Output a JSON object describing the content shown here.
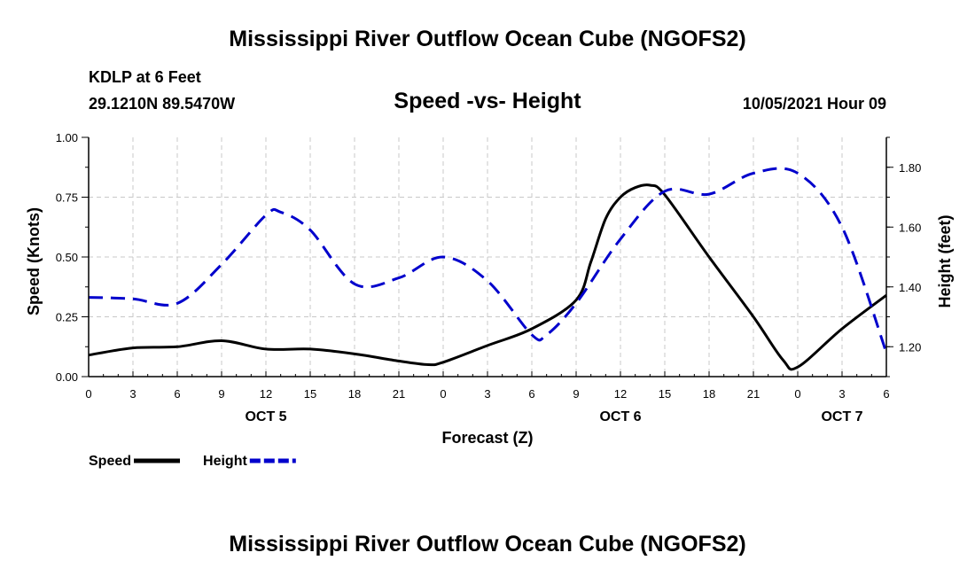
{
  "page": {
    "title_top": "Mississippi River Outflow Ocean Cube (NGOFS2)",
    "title_bottom": "Mississippi River Outflow Ocean Cube (NGOFS2)",
    "station": "KDLP at 6 Feet",
    "coords": "29.1210N  89.5470W",
    "subtitle": "Speed -vs- Height",
    "datetime": "10/05/2021 Hour 09"
  },
  "chart_data": {
    "type": "line",
    "title": "Speed -vs- Height",
    "xlabel": "Forecast (Z)",
    "ylabel_left": "Speed (Knots)",
    "ylabel_right": "Height (feet)",
    "x_range": [
      0,
      54
    ],
    "y_left_range": [
      0,
      1.0
    ],
    "y_right_range": [
      1.1,
      1.9
    ],
    "x_tick_labels": [
      "0",
      "3",
      "6",
      "9",
      "12",
      "15",
      "18",
      "21",
      "0",
      "3",
      "6",
      "9",
      "12",
      "15",
      "18",
      "21",
      "0",
      "3",
      "6"
    ],
    "y_left_ticks": [
      0.0,
      0.25,
      0.5,
      0.75,
      1.0
    ],
    "y_left_tick_labels": [
      "0.00",
      "0.25",
      "0.50",
      "0.75",
      "1.00"
    ],
    "y_right_ticks": [
      1.2,
      1.4,
      1.6,
      1.8
    ],
    "y_right_tick_labels": [
      "1.20",
      "1.40",
      "1.60",
      "1.80"
    ],
    "day_labels": [
      {
        "label": "OCT 5",
        "x": 12
      },
      {
        "label": "OCT 6",
        "x": 36
      },
      {
        "label": "OCT 7",
        "x": 51
      }
    ],
    "grid": true,
    "series": [
      {
        "name": "Speed",
        "axis": "left",
        "color": "#000000",
        "dash": "solid",
        "x": [
          0,
          3,
          6,
          9,
          12,
          15,
          18,
          21,
          23,
          24,
          27,
          30,
          33,
          34,
          35,
          36,
          37,
          38,
          39,
          42,
          45,
          47,
          48,
          51,
          54
        ],
        "values": [
          0.09,
          0.12,
          0.125,
          0.15,
          0.115,
          0.115,
          0.095,
          0.065,
          0.05,
          0.06,
          0.13,
          0.2,
          0.32,
          0.48,
          0.66,
          0.75,
          0.79,
          0.8,
          0.76,
          0.5,
          0.25,
          0.07,
          0.04,
          0.2,
          0.34
        ]
      },
      {
        "name": "Height",
        "axis": "right",
        "color": "#0000cc",
        "dash": "dashed",
        "x": [
          0,
          3,
          6,
          9,
          12,
          13,
          15,
          18,
          21,
          24,
          27,
          30,
          31,
          33,
          36,
          39,
          42,
          45,
          48,
          51,
          54
        ],
        "values": [
          1.365,
          1.36,
          1.345,
          1.475,
          1.64,
          1.65,
          1.59,
          1.41,
          1.43,
          1.5,
          1.42,
          1.24,
          1.24,
          1.345,
          1.56,
          1.72,
          1.71,
          1.78,
          1.78,
          1.6,
          1.18
        ]
      }
    ]
  }
}
